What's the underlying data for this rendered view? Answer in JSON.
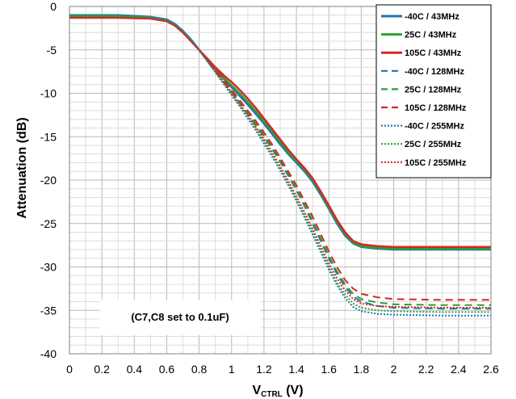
{
  "chart_data": {
    "type": "line",
    "xlabel_main": "V",
    "xlabel_sub": "CTRL",
    "xlabel_unit": " (V)",
    "ylabel": "Attenuation (dB)",
    "xlim": [
      0,
      2.6
    ],
    "ylim": [
      -40,
      0
    ],
    "x_ticks": [
      "0",
      "0.2",
      "0.4",
      "0.6",
      "0.8",
      "1",
      "1.2",
      "1.4",
      "1.6",
      "1.8",
      "2",
      "2.2",
      "2.4",
      "2.6"
    ],
    "y_ticks": [
      "0",
      "-5",
      "-10",
      "-15",
      "-20",
      "-25",
      "-30",
      "-35",
      "-40"
    ],
    "grid": "major and minor",
    "legend_position": "top-right",
    "annotation": "(C7,C8 set to 0.1uF)",
    "series": [
      {
        "name": "-40C / 43MHz",
        "color": "#1f77b4",
        "dash": "solid",
        "points": [
          [
            0,
            -1.0
          ],
          [
            0.3,
            -1.0
          ],
          [
            0.5,
            -1.2
          ],
          [
            0.6,
            -1.5
          ],
          [
            0.65,
            -2.0
          ],
          [
            0.7,
            -2.8
          ],
          [
            0.75,
            -3.8
          ],
          [
            0.8,
            -5.0
          ],
          [
            0.85,
            -6.2
          ],
          [
            0.9,
            -7.3
          ],
          [
            0.95,
            -8.3
          ],
          [
            1.0,
            -9.3
          ],
          [
            1.05,
            -10.3
          ],
          [
            1.1,
            -11.3
          ],
          [
            1.15,
            -12.4
          ],
          [
            1.2,
            -13.5
          ],
          [
            1.25,
            -14.7
          ],
          [
            1.3,
            -15.9
          ],
          [
            1.35,
            -17.0
          ],
          [
            1.4,
            -18.0
          ],
          [
            1.45,
            -19.0
          ],
          [
            1.5,
            -20.2
          ],
          [
            1.55,
            -21.7
          ],
          [
            1.6,
            -23.3
          ],
          [
            1.65,
            -25.0
          ],
          [
            1.7,
            -26.4
          ],
          [
            1.75,
            -27.3
          ],
          [
            1.8,
            -27.7
          ],
          [
            1.9,
            -27.9
          ],
          [
            2.0,
            -28.0
          ],
          [
            2.3,
            -28.0
          ],
          [
            2.6,
            -28.0
          ]
        ]
      },
      {
        "name": "25C / 43MHz",
        "color": "#2ca02c",
        "dash": "solid",
        "points": [
          [
            0,
            -1.1
          ],
          [
            0.3,
            -1.1
          ],
          [
            0.5,
            -1.3
          ],
          [
            0.6,
            -1.6
          ],
          [
            0.65,
            -2.1
          ],
          [
            0.7,
            -2.9
          ],
          [
            0.75,
            -3.9
          ],
          [
            0.8,
            -5.0
          ],
          [
            0.85,
            -6.2
          ],
          [
            0.9,
            -7.2
          ],
          [
            0.95,
            -8.2
          ],
          [
            1.0,
            -9.1
          ],
          [
            1.05,
            -10.0
          ],
          [
            1.1,
            -11.0
          ],
          [
            1.15,
            -12.1
          ],
          [
            1.2,
            -13.2
          ],
          [
            1.25,
            -14.4
          ],
          [
            1.3,
            -15.6
          ],
          [
            1.35,
            -16.8
          ],
          [
            1.4,
            -17.8
          ],
          [
            1.45,
            -18.8
          ],
          [
            1.5,
            -20.0
          ],
          [
            1.55,
            -21.5
          ],
          [
            1.6,
            -23.1
          ],
          [
            1.65,
            -24.8
          ],
          [
            1.7,
            -26.2
          ],
          [
            1.75,
            -27.2
          ],
          [
            1.8,
            -27.6
          ],
          [
            1.9,
            -27.8
          ],
          [
            2.0,
            -27.9
          ],
          [
            2.3,
            -27.9
          ],
          [
            2.6,
            -27.9
          ]
        ]
      },
      {
        "name": "105C / 43MHz",
        "color": "#d62728",
        "dash": "solid",
        "points": [
          [
            0,
            -1.3
          ],
          [
            0.3,
            -1.3
          ],
          [
            0.5,
            -1.4
          ],
          [
            0.6,
            -1.7
          ],
          [
            0.65,
            -2.2
          ],
          [
            0.7,
            -3.0
          ],
          [
            0.75,
            -4.0
          ],
          [
            0.8,
            -5.0
          ],
          [
            0.85,
            -6.0
          ],
          [
            0.9,
            -7.0
          ],
          [
            0.95,
            -7.9
          ],
          [
            1.0,
            -8.7
          ],
          [
            1.05,
            -9.6
          ],
          [
            1.1,
            -10.6
          ],
          [
            1.15,
            -11.7
          ],
          [
            1.2,
            -12.9
          ],
          [
            1.25,
            -14.1
          ],
          [
            1.3,
            -15.3
          ],
          [
            1.35,
            -16.5
          ],
          [
            1.4,
            -17.6
          ],
          [
            1.45,
            -18.6
          ],
          [
            1.5,
            -19.8
          ],
          [
            1.55,
            -21.3
          ],
          [
            1.6,
            -22.9
          ],
          [
            1.65,
            -24.6
          ],
          [
            1.7,
            -26.0
          ],
          [
            1.75,
            -27.0
          ],
          [
            1.8,
            -27.4
          ],
          [
            1.9,
            -27.6
          ],
          [
            2.0,
            -27.7
          ],
          [
            2.3,
            -27.7
          ],
          [
            2.6,
            -27.7
          ]
        ]
      },
      {
        "name": "-40C / 128MHz",
        "color": "#1f77b4",
        "dash": "dashed",
        "points": [
          [
            0,
            -1.0
          ],
          [
            0.3,
            -1.0
          ],
          [
            0.5,
            -1.2
          ],
          [
            0.6,
            -1.5
          ],
          [
            0.65,
            -2.0
          ],
          [
            0.7,
            -2.8
          ],
          [
            0.75,
            -3.8
          ],
          [
            0.8,
            -5.0
          ],
          [
            0.85,
            -6.3
          ],
          [
            0.9,
            -7.5
          ],
          [
            0.95,
            -8.7
          ],
          [
            1.0,
            -9.9
          ],
          [
            1.05,
            -11.1
          ],
          [
            1.1,
            -12.4
          ],
          [
            1.15,
            -13.7
          ],
          [
            1.2,
            -15.0
          ],
          [
            1.25,
            -16.4
          ],
          [
            1.3,
            -17.9
          ],
          [
            1.35,
            -19.5
          ],
          [
            1.4,
            -21.2
          ],
          [
            1.45,
            -23.0
          ],
          [
            1.5,
            -25.0
          ],
          [
            1.55,
            -27.0
          ],
          [
            1.6,
            -29.0
          ],
          [
            1.65,
            -30.8
          ],
          [
            1.7,
            -32.3
          ],
          [
            1.75,
            -33.4
          ],
          [
            1.8,
            -34.0
          ],
          [
            1.9,
            -34.5
          ],
          [
            2.0,
            -34.7
          ],
          [
            2.3,
            -34.8
          ],
          [
            2.6,
            -34.8
          ]
        ]
      },
      {
        "name": "25C / 128MHz",
        "color": "#2ca02c",
        "dash": "dashed",
        "points": [
          [
            0,
            -1.1
          ],
          [
            0.3,
            -1.1
          ],
          [
            0.5,
            -1.3
          ],
          [
            0.6,
            -1.6
          ],
          [
            0.65,
            -2.1
          ],
          [
            0.7,
            -2.9
          ],
          [
            0.75,
            -3.9
          ],
          [
            0.8,
            -5.0
          ],
          [
            0.85,
            -6.2
          ],
          [
            0.9,
            -7.4
          ],
          [
            0.95,
            -8.6
          ],
          [
            1.0,
            -9.8
          ],
          [
            1.05,
            -11.0
          ],
          [
            1.1,
            -12.2
          ],
          [
            1.15,
            -13.5
          ],
          [
            1.2,
            -14.8
          ],
          [
            1.25,
            -16.2
          ],
          [
            1.3,
            -17.7
          ],
          [
            1.35,
            -19.3
          ],
          [
            1.4,
            -21.0
          ],
          [
            1.45,
            -22.8
          ],
          [
            1.5,
            -24.7
          ],
          [
            1.55,
            -26.7
          ],
          [
            1.6,
            -28.7
          ],
          [
            1.65,
            -30.5
          ],
          [
            1.7,
            -32.0
          ],
          [
            1.75,
            -33.1
          ],
          [
            1.8,
            -33.7
          ],
          [
            1.9,
            -34.1
          ],
          [
            2.0,
            -34.3
          ],
          [
            2.3,
            -34.4
          ],
          [
            2.6,
            -34.4
          ]
        ]
      },
      {
        "name": "105C / 128MHz",
        "color": "#d62728",
        "dash": "dashed",
        "points": [
          [
            0,
            -1.3
          ],
          [
            0.3,
            -1.3
          ],
          [
            0.5,
            -1.4
          ],
          [
            0.6,
            -1.7
          ],
          [
            0.65,
            -2.2
          ],
          [
            0.7,
            -3.0
          ],
          [
            0.75,
            -4.0
          ],
          [
            0.8,
            -5.0
          ],
          [
            0.85,
            -6.1
          ],
          [
            0.9,
            -7.2
          ],
          [
            0.95,
            -8.4
          ],
          [
            1.0,
            -9.6
          ],
          [
            1.05,
            -10.8
          ],
          [
            1.1,
            -12.0
          ],
          [
            1.15,
            -13.2
          ],
          [
            1.2,
            -14.5
          ],
          [
            1.25,
            -15.9
          ],
          [
            1.3,
            -17.4
          ],
          [
            1.35,
            -19.0
          ],
          [
            1.4,
            -20.6
          ],
          [
            1.45,
            -22.4
          ],
          [
            1.5,
            -24.2
          ],
          [
            1.55,
            -26.2
          ],
          [
            1.6,
            -28.2
          ],
          [
            1.65,
            -30.0
          ],
          [
            1.7,
            -31.5
          ],
          [
            1.75,
            -32.5
          ],
          [
            1.8,
            -33.1
          ],
          [
            1.9,
            -33.5
          ],
          [
            2.0,
            -33.7
          ],
          [
            2.3,
            -33.8
          ],
          [
            2.6,
            -33.8
          ]
        ]
      },
      {
        "name": "-40C / 255MHz",
        "color": "#1f77b4",
        "dash": "dotted",
        "points": [
          [
            0,
            -1.0
          ],
          [
            0.3,
            -1.0
          ],
          [
            0.5,
            -1.2
          ],
          [
            0.6,
            -1.5
          ],
          [
            0.65,
            -2.0
          ],
          [
            0.7,
            -2.8
          ],
          [
            0.75,
            -3.8
          ],
          [
            0.8,
            -5.0
          ],
          [
            0.85,
            -6.3
          ],
          [
            0.9,
            -7.6
          ],
          [
            0.95,
            -8.9
          ],
          [
            1.0,
            -10.2
          ],
          [
            1.05,
            -11.5
          ],
          [
            1.1,
            -12.9
          ],
          [
            1.15,
            -14.3
          ],
          [
            1.2,
            -15.8
          ],
          [
            1.25,
            -17.3
          ],
          [
            1.3,
            -18.9
          ],
          [
            1.35,
            -20.6
          ],
          [
            1.4,
            -22.4
          ],
          [
            1.45,
            -24.3
          ],
          [
            1.5,
            -26.3
          ],
          [
            1.55,
            -28.3
          ],
          [
            1.6,
            -30.3
          ],
          [
            1.65,
            -32.1
          ],
          [
            1.7,
            -33.6
          ],
          [
            1.75,
            -34.6
          ],
          [
            1.8,
            -35.1
          ],
          [
            1.9,
            -35.4
          ],
          [
            2.0,
            -35.5
          ],
          [
            2.3,
            -35.6
          ],
          [
            2.6,
            -35.6
          ]
        ]
      },
      {
        "name": "25C / 255MHz",
        "color": "#2ca02c",
        "dash": "dotted",
        "points": [
          [
            0,
            -1.1
          ],
          [
            0.3,
            -1.1
          ],
          [
            0.5,
            -1.3
          ],
          [
            0.6,
            -1.6
          ],
          [
            0.65,
            -2.1
          ],
          [
            0.7,
            -2.9
          ],
          [
            0.75,
            -3.9
          ],
          [
            0.8,
            -5.0
          ],
          [
            0.85,
            -6.3
          ],
          [
            0.9,
            -7.5
          ],
          [
            0.95,
            -8.8
          ],
          [
            1.0,
            -10.1
          ],
          [
            1.05,
            -11.4
          ],
          [
            1.1,
            -12.7
          ],
          [
            1.15,
            -14.1
          ],
          [
            1.2,
            -15.6
          ],
          [
            1.25,
            -17.1
          ],
          [
            1.3,
            -18.7
          ],
          [
            1.35,
            -20.4
          ],
          [
            1.4,
            -22.2
          ],
          [
            1.45,
            -24.1
          ],
          [
            1.5,
            -26.0
          ],
          [
            1.55,
            -28.0
          ],
          [
            1.6,
            -30.0
          ],
          [
            1.65,
            -31.8
          ],
          [
            1.7,
            -33.2
          ],
          [
            1.75,
            -34.2
          ],
          [
            1.8,
            -34.7
          ],
          [
            1.9,
            -35.0
          ],
          [
            2.0,
            -35.1
          ],
          [
            2.3,
            -35.2
          ],
          [
            2.6,
            -35.2
          ]
        ]
      },
      {
        "name": "105C / 255MHz",
        "color": "#d62728",
        "dash": "dotted",
        "points": [
          [
            0,
            -1.3
          ],
          [
            0.3,
            -1.3
          ],
          [
            0.5,
            -1.4
          ],
          [
            0.6,
            -1.7
          ],
          [
            0.65,
            -2.2
          ],
          [
            0.7,
            -3.0
          ],
          [
            0.75,
            -4.0
          ],
          [
            0.8,
            -5.0
          ],
          [
            0.85,
            -6.2
          ],
          [
            0.9,
            -7.4
          ],
          [
            0.95,
            -8.7
          ],
          [
            1.0,
            -9.9
          ],
          [
            1.05,
            -11.2
          ],
          [
            1.1,
            -12.5
          ],
          [
            1.15,
            -13.9
          ],
          [
            1.2,
            -15.3
          ],
          [
            1.25,
            -16.8
          ],
          [
            1.3,
            -18.4
          ],
          [
            1.35,
            -20.1
          ],
          [
            1.4,
            -21.9
          ],
          [
            1.45,
            -23.7
          ],
          [
            1.5,
            -25.6
          ],
          [
            1.55,
            -27.6
          ],
          [
            1.6,
            -29.6
          ],
          [
            1.65,
            -31.3
          ],
          [
            1.7,
            -32.7
          ],
          [
            1.75,
            -33.7
          ],
          [
            1.8,
            -34.2
          ],
          [
            1.9,
            -34.5
          ],
          [
            2.0,
            -34.6
          ],
          [
            2.3,
            -34.7
          ],
          [
            2.6,
            -34.7
          ]
        ]
      }
    ]
  }
}
